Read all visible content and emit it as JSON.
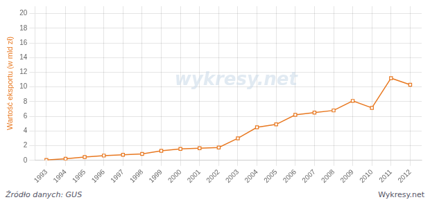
{
  "chart_data": {
    "type": "line",
    "y_label": "Wartość eksportu (w mld zł)",
    "annotations": [
      "wykresy.net",
      "Źródło danych:  GUS",
      "Wykresy.net"
    ],
    "x": [
      1993,
      1994,
      1995,
      1996,
      1997,
      1998,
      1999,
      2000,
      2001,
      2002,
      2003,
      2004,
      2005,
      2006,
      2007,
      2008,
      2009,
      2010,
      2011,
      2012
    ],
    "values": [
      0.05,
      0.22,
      0.45,
      0.65,
      0.75,
      0.88,
      1.3,
      1.55,
      1.65,
      1.75,
      3.0,
      4.5,
      4.9,
      6.2,
      6.5,
      6.8,
      8.1,
      7.15,
      11.2,
      10.3
    ],
    "color": "#E87820",
    "marker": "square",
    "xlim": [
      1992.4,
      2012.6
    ],
    "xticks": [
      1993,
      1994,
      1995,
      1996,
      1997,
      1998,
      1999,
      2000,
      2001,
      2002,
      2003,
      2004,
      2005,
      2006,
      2007,
      2008,
      2009,
      2010,
      2011,
      2012
    ],
    "ylim": [
      0,
      21
    ],
    "yticks": [
      0,
      2,
      4,
      6,
      8,
      10,
      12,
      14,
      16,
      18,
      20
    ],
    "grid": true
  }
}
